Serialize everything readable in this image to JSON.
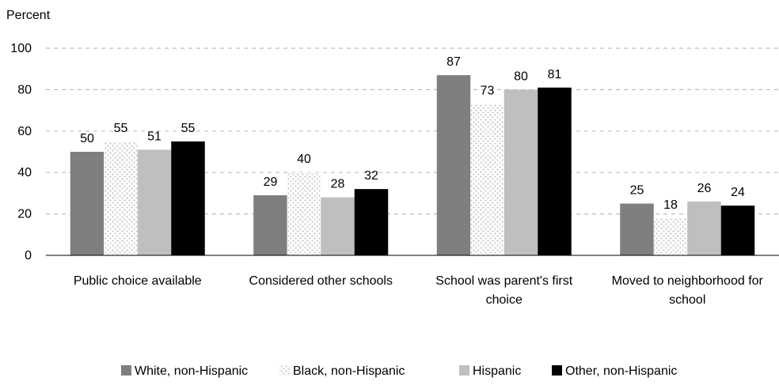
{
  "chart_data": {
    "type": "bar",
    "ylabel": "Percent",
    "ylim": [
      0,
      100
    ],
    "yticks": [
      0,
      20,
      40,
      60,
      80,
      100
    ],
    "grid": true,
    "legend_position": "bottom",
    "categories": [
      [
        "Public choice available"
      ],
      [
        "Considered other schools"
      ],
      [
        "School was parent's first",
        "choice"
      ],
      [
        "Moved to neighborhood for",
        "school"
      ]
    ],
    "series": [
      {
        "name": "White, non-Hispanic",
        "color": "#7f7f7f",
        "pattern": "solid",
        "values": [
          50,
          29,
          87,
          25
        ]
      },
      {
        "name": "Black, non-Hispanic",
        "color": "#d9d9d9",
        "pattern": "dots",
        "values": [
          55,
          40,
          73,
          18
        ]
      },
      {
        "name": "Hispanic",
        "color": "#bfbfbf",
        "pattern": "solid",
        "values": [
          51,
          28,
          80,
          26
        ]
      },
      {
        "name": "Other, non-Hispanic",
        "color": "#000000",
        "pattern": "solid",
        "values": [
          55,
          32,
          81,
          24
        ]
      }
    ]
  }
}
